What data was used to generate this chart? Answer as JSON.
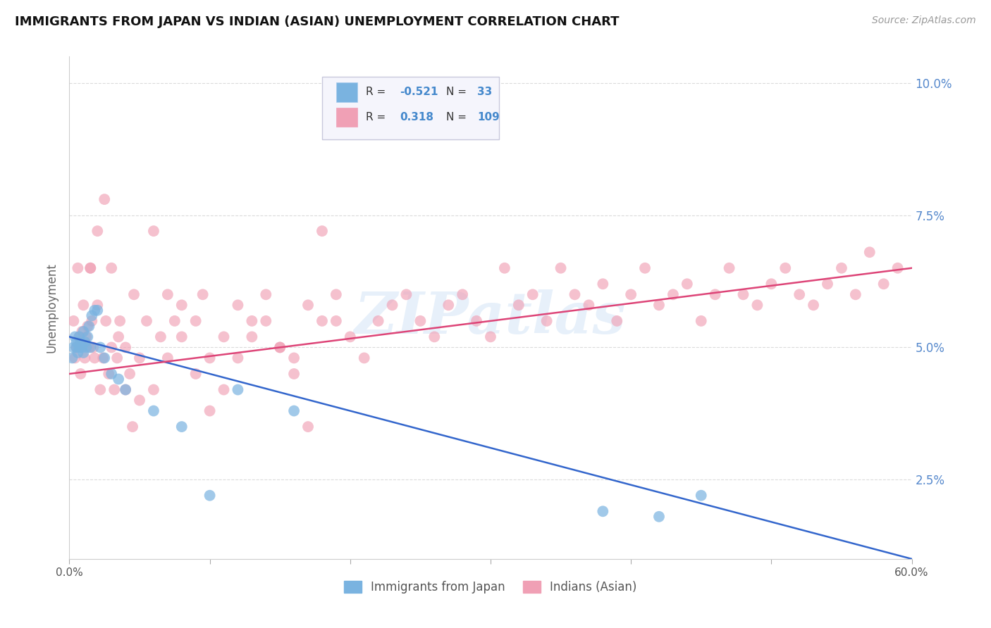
{
  "title": "IMMIGRANTS FROM JAPAN VS INDIAN (ASIAN) UNEMPLOYMENT CORRELATION CHART",
  "source": "Source: ZipAtlas.com",
  "ylabel": "Unemployment",
  "xlim": [
    0.0,
    0.6
  ],
  "ylim": [
    0.01,
    0.105
  ],
  "yticks": [
    0.025,
    0.05,
    0.075,
    0.1
  ],
  "yticklabels": [
    "2.5%",
    "5.0%",
    "7.5%",
    "10.0%"
  ],
  "japan_color": "#7ab3e0",
  "indian_color": "#f0a0b5",
  "japan_R": -0.521,
  "japan_N": 33,
  "indian_R": 0.318,
  "indian_N": 109,
  "japan_label": "Immigrants from Japan",
  "indian_label": "Indians (Asian)",
  "background_color": "#ffffff",
  "grid_color": "#cccccc",
  "watermark": "ZIPatlas",
  "japan_trend_start": 0.052,
  "japan_trend_end": 0.01,
  "indian_trend_start": 0.045,
  "indian_trend_end": 0.065,
  "legend_box_color": "#f0f0f8",
  "legend_border_color": "#d0d0e0",
  "right_tick_color": "#5588cc",
  "title_color": "#111111",
  "source_color": "#999999",
  "japan_x": [
    0.002,
    0.003,
    0.004,
    0.005,
    0.005,
    0.006,
    0.007,
    0.007,
    0.008,
    0.009,
    0.01,
    0.01,
    0.011,
    0.012,
    0.013,
    0.014,
    0.015,
    0.016,
    0.018,
    0.02,
    0.022,
    0.025,
    0.03,
    0.035,
    0.04,
    0.06,
    0.08,
    0.1,
    0.12,
    0.16,
    0.38,
    0.42,
    0.45
  ],
  "japan_y": [
    0.048,
    0.05,
    0.052,
    0.05,
    0.051,
    0.049,
    0.052,
    0.05,
    0.051,
    0.05,
    0.053,
    0.049,
    0.051,
    0.05,
    0.052,
    0.054,
    0.05,
    0.056,
    0.057,
    0.057,
    0.05,
    0.048,
    0.045,
    0.044,
    0.042,
    0.038,
    0.035,
    0.022,
    0.042,
    0.038,
    0.019,
    0.018,
    0.022
  ],
  "indian_x": [
    0.003,
    0.004,
    0.005,
    0.006,
    0.007,
    0.008,
    0.009,
    0.01,
    0.011,
    0.012,
    0.013,
    0.014,
    0.015,
    0.016,
    0.017,
    0.018,
    0.02,
    0.022,
    0.024,
    0.026,
    0.028,
    0.03,
    0.032,
    0.034,
    0.036,
    0.04,
    0.043,
    0.046,
    0.05,
    0.055,
    0.06,
    0.065,
    0.07,
    0.075,
    0.08,
    0.09,
    0.095,
    0.1,
    0.11,
    0.12,
    0.13,
    0.14,
    0.15,
    0.16,
    0.17,
    0.18,
    0.19,
    0.2,
    0.21,
    0.22,
    0.23,
    0.24,
    0.25,
    0.26,
    0.27,
    0.28,
    0.29,
    0.3,
    0.31,
    0.32,
    0.33,
    0.34,
    0.35,
    0.36,
    0.37,
    0.38,
    0.39,
    0.4,
    0.41,
    0.42,
    0.43,
    0.44,
    0.45,
    0.46,
    0.47,
    0.48,
    0.49,
    0.5,
    0.51,
    0.52,
    0.53,
    0.54,
    0.55,
    0.56,
    0.57,
    0.58,
    0.59,
    0.015,
    0.02,
    0.025,
    0.03,
    0.035,
    0.04,
    0.045,
    0.05,
    0.06,
    0.07,
    0.08,
    0.09,
    0.1,
    0.11,
    0.12,
    0.13,
    0.14,
    0.15,
    0.16,
    0.17,
    0.18,
    0.19
  ],
  "indian_y": [
    0.055,
    0.048,
    0.05,
    0.065,
    0.052,
    0.045,
    0.053,
    0.058,
    0.048,
    0.052,
    0.054,
    0.05,
    0.065,
    0.055,
    0.05,
    0.048,
    0.058,
    0.042,
    0.048,
    0.055,
    0.045,
    0.05,
    0.042,
    0.048,
    0.055,
    0.05,
    0.045,
    0.06,
    0.048,
    0.055,
    0.072,
    0.052,
    0.06,
    0.055,
    0.058,
    0.055,
    0.06,
    0.048,
    0.052,
    0.058,
    0.055,
    0.06,
    0.05,
    0.048,
    0.058,
    0.055,
    0.06,
    0.052,
    0.048,
    0.055,
    0.058,
    0.06,
    0.055,
    0.052,
    0.058,
    0.06,
    0.055,
    0.052,
    0.065,
    0.058,
    0.06,
    0.055,
    0.065,
    0.06,
    0.058,
    0.062,
    0.055,
    0.06,
    0.065,
    0.058,
    0.06,
    0.062,
    0.055,
    0.06,
    0.065,
    0.06,
    0.058,
    0.062,
    0.065,
    0.06,
    0.058,
    0.062,
    0.065,
    0.06,
    0.068,
    0.062,
    0.065,
    0.065,
    0.072,
    0.078,
    0.065,
    0.052,
    0.042,
    0.035,
    0.04,
    0.042,
    0.048,
    0.052,
    0.045,
    0.038,
    0.042,
    0.048,
    0.052,
    0.055,
    0.05,
    0.045,
    0.035,
    0.072,
    0.055
  ]
}
